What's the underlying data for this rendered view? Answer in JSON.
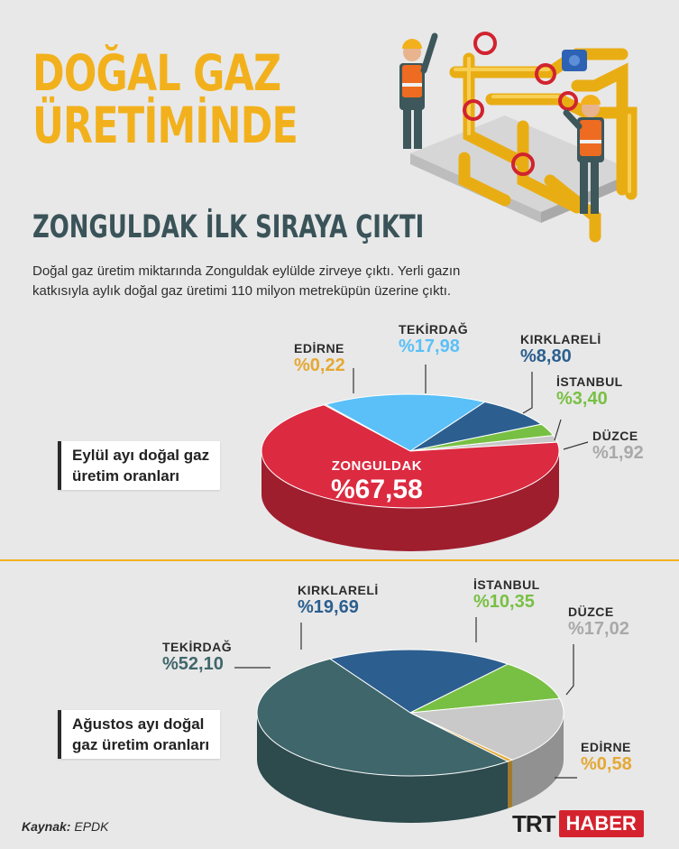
{
  "header": {
    "title_lines": [
      "DOĞAL GAZ",
      "ÜRETİMİNDE"
    ],
    "subtitle": "ZONGULDAK İLK SIRAYA ÇIKTI",
    "intro_line1": "Doğal gaz üretim miktarında Zonguldak eylülde zirveye çıktı. Yerli gazın",
    "intro_line2": "katkısıyla aylık doğal gaz üretimi 110 milyon metreküpün üzerine çıktı."
  },
  "colors": {
    "title": "#f2b11c",
    "zonguldak": "#dc2a40",
    "tekirdag_sep": "#5ac0f7",
    "kirklareli": "#2c5f8f",
    "istanbul": "#78c043",
    "duzce": "#c9c9c9",
    "edirne": "#e5a834",
    "tekirdag_aug": "#3f676b"
  },
  "chart_data": [
    {
      "type": "pie",
      "caption_line1": "Eylül ayı doğal gaz",
      "caption_line2": "üretim oranları",
      "slices": [
        {
          "key": "zonguldak",
          "name": "ZONGULDAK",
          "value": 67.58,
          "label": "%67,58",
          "color": "#dc2a40"
        },
        {
          "key": "edirne",
          "name": "EDİRNE",
          "value": 0.22,
          "label": "%0,22",
          "color": "#e5a834"
        },
        {
          "key": "tekirdag",
          "name": "TEKİRDAĞ",
          "value": 17.98,
          "label": "%17,98",
          "color": "#5ac0f7"
        },
        {
          "key": "kirklareli",
          "name": "KIRKLARELİ",
          "value": 8.8,
          "label": "%8,80",
          "color": "#2c5f8f"
        },
        {
          "key": "istanbul",
          "name": "İSTANBUL",
          "value": 3.4,
          "label": "%3,40",
          "color": "#78c043"
        },
        {
          "key": "duzce",
          "name": "DÜZCE",
          "value": 1.92,
          "label": "%1,92",
          "color": "#c9c9c9"
        }
      ]
    },
    {
      "type": "pie",
      "caption_line1": "Ağustos ayı doğal",
      "caption_line2": "gaz üretim oranları",
      "slices": [
        {
          "key": "tekirdag",
          "name": "TEKİRDAĞ",
          "value": 52.1,
          "label": "%52,10",
          "color": "#3f676b"
        },
        {
          "key": "kirklareli",
          "name": "KIRKLARELİ",
          "value": 19.69,
          "label": "%19,69",
          "color": "#2c5f8f"
        },
        {
          "key": "istanbul",
          "name": "İSTANBUL",
          "value": 10.35,
          "label": "%10,35",
          "color": "#78c043"
        },
        {
          "key": "duzce",
          "name": "DÜZCE",
          "value": 17.02,
          "label": "%17,02",
          "color": "#c9c9c9"
        },
        {
          "key": "edirne",
          "name": "EDİRNE",
          "value": 0.58,
          "label": "%0,58",
          "color": "#e5a834"
        }
      ]
    }
  ],
  "footer": {
    "source_label": "Kaynak:",
    "source_value": "EPDK",
    "logo_left": "TRT",
    "logo_right": "HABER"
  }
}
